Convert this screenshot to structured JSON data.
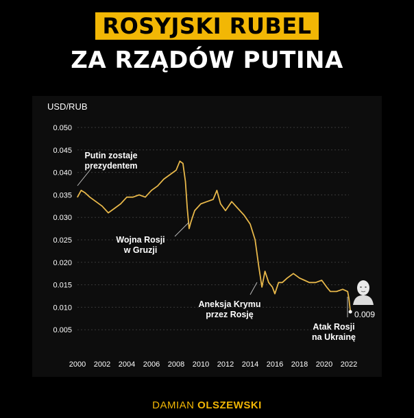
{
  "header": {
    "title_line1": "ROSYJSKI RUBEL",
    "title_line2": "ZA RZĄDÓW PUTINA"
  },
  "footer": {
    "author_first": "DAMIAN",
    "author_last": "OLSZEWSKI"
  },
  "colors": {
    "accent": "#F2B705",
    "line": "#E8B84A",
    "background": "#000000",
    "panel": "#0d0d0d",
    "grid": "#3a3a3a"
  },
  "chart_data": {
    "type": "line",
    "ylabel": "USD/RUB",
    "xlim": [
      2000,
      2022
    ],
    "ylim": [
      0,
      0.05
    ],
    "x_ticks": [
      "2000",
      "2002",
      "2004",
      "2006",
      "2008",
      "2010",
      "2012",
      "2014",
      "2016",
      "2018",
      "2020",
      "2022"
    ],
    "y_ticks": [
      "0.050",
      "0.045",
      "0.040",
      "0.035",
      "0.030",
      "0.025",
      "0.020",
      "0.015",
      "0.010",
      "0.005"
    ],
    "grid": true,
    "series": [
      {
        "x": [
          2000.0,
          2000.3,
          2000.6,
          2001.0,
          2001.5,
          2002.0,
          2002.5,
          2003.0,
          2003.5,
          2004.0,
          2004.5,
          2005.0,
          2005.5,
          2006.0,
          2006.5,
          2007.0,
          2007.5,
          2008.0,
          2008.3,
          2008.55,
          2008.75,
          2008.9,
          2009.05,
          2009.2,
          2009.5,
          2010.0,
          2010.5,
          2011.0,
          2011.3,
          2011.6,
          2012.0,
          2012.5,
          2013.0,
          2013.5,
          2014.0,
          2014.4,
          2014.7,
          2014.95,
          2015.2,
          2015.5,
          2015.8,
          2016.0,
          2016.3,
          2016.6,
          2017.0,
          2017.5,
          2018.0,
          2018.4,
          2018.8,
          2019.3,
          2019.8,
          2020.2,
          2020.5,
          2021.0,
          2021.5,
          2021.9,
          2022.0,
          2022.12
        ],
        "values": [
          0.0345,
          0.036,
          0.0355,
          0.0345,
          0.0335,
          0.0325,
          0.031,
          0.032,
          0.033,
          0.0345,
          0.0345,
          0.035,
          0.0345,
          0.036,
          0.037,
          0.0385,
          0.0395,
          0.0405,
          0.0425,
          0.042,
          0.038,
          0.032,
          0.0275,
          0.029,
          0.0315,
          0.033,
          0.0335,
          0.034,
          0.036,
          0.033,
          0.0315,
          0.0335,
          0.032,
          0.0305,
          0.0285,
          0.025,
          0.019,
          0.0145,
          0.018,
          0.0155,
          0.0145,
          0.013,
          0.0155,
          0.0155,
          0.0165,
          0.0175,
          0.0165,
          0.016,
          0.0155,
          0.0155,
          0.016,
          0.0145,
          0.0135,
          0.0135,
          0.014,
          0.0135,
          0.012,
          0.009
        ]
      }
    ],
    "annotations": [
      {
        "line1": "Putin zostaje",
        "line2": "prezydentem"
      },
      {
        "line1": "Wojna Rosji",
        "line2": "w Gruzji"
      },
      {
        "line1": "Aneksja Krymu",
        "line2": "przez Rosję"
      },
      {
        "line1": "Atak Rosji",
        "line2": "na Ukrainę"
      }
    ],
    "end_label": "0.009"
  }
}
